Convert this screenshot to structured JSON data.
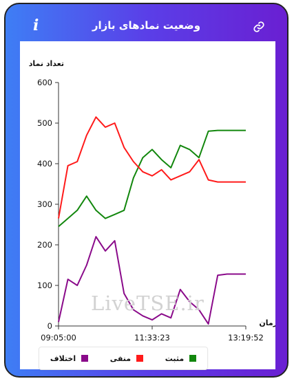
{
  "header": {
    "title": "وضعیت نمادهای بازار",
    "info_icon": "info-icon",
    "link_icon": "link-icon"
  },
  "watermark": "LiveTSE.ir",
  "chart_data": {
    "type": "line",
    "ylabel": "تعداد نماد",
    "xlabel": "زمان",
    "ylim": [
      0,
      600
    ],
    "yticks": [
      0,
      100,
      200,
      300,
      400,
      500,
      600
    ],
    "xtick_labels": [
      "09:05:00",
      "11:33:23",
      "13:19:52"
    ],
    "x": [
      "09:05:00",
      "09:20:00",
      "09:35:00",
      "09:50:00",
      "10:05:00",
      "10:15:00",
      "10:25:00",
      "10:35:00",
      "10:45:00",
      "10:55:00",
      "11:05:00",
      "11:20:00",
      "11:33:23",
      "11:50:00",
      "12:05:00",
      "12:20:00",
      "12:28:00",
      "12:35:00",
      "12:50:00",
      "13:05:00",
      "13:19:52"
    ],
    "series": [
      {
        "name": "مثبت",
        "color": "#12870d",
        "values": [
          245,
          265,
          285,
          320,
          285,
          265,
          275,
          285,
          365,
          415,
          435,
          410,
          390,
          445,
          435,
          415,
          480,
          482,
          482,
          482,
          482
        ]
      },
      {
        "name": "منفی",
        "color": "#ff1a1a",
        "values": [
          265,
          395,
          405,
          470,
          515,
          490,
          500,
          440,
          405,
          380,
          370,
          385,
          360,
          370,
          380,
          410,
          360,
          355,
          355,
          355,
          355
        ]
      },
      {
        "name": "اختلاف",
        "color": "#8a0a8a",
        "values": [
          10,
          115,
          100,
          150,
          220,
          185,
          210,
          80,
          40,
          25,
          15,
          30,
          20,
          90,
          60,
          40,
          5,
          125,
          128,
          128,
          128
        ]
      }
    ],
    "legend_placement": "bottom"
  }
}
